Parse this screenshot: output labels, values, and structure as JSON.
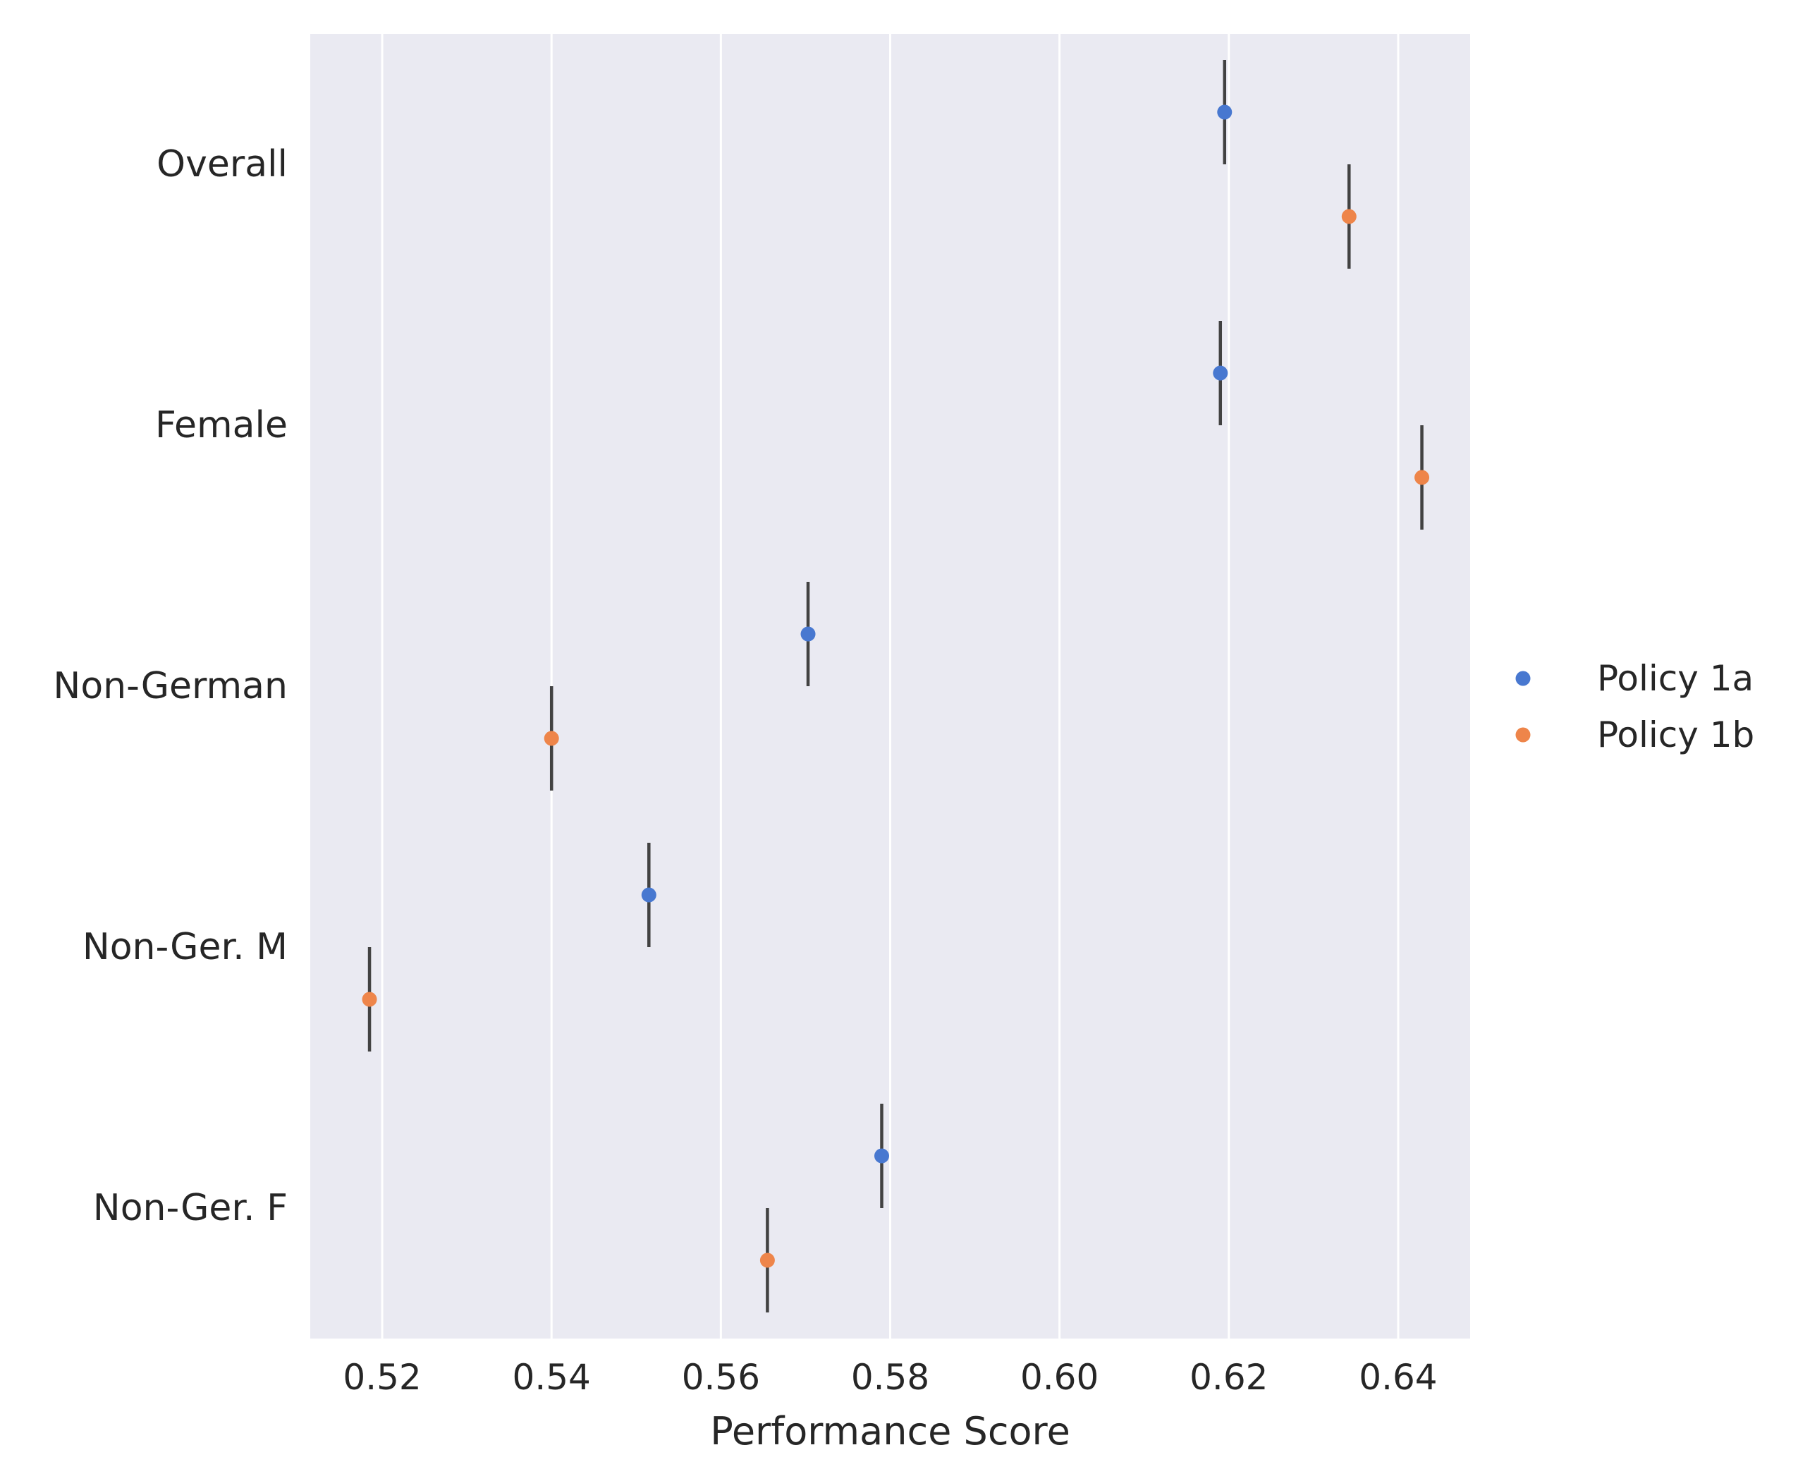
{
  "chart_data": {
    "type": "scatter",
    "title": "",
    "xlabel": "Performance Score",
    "ylabel": "",
    "xlim": [
      0.5115,
      0.6485
    ],
    "xticks": [
      0.52,
      0.54,
      0.56,
      0.58,
      0.6,
      0.62,
      0.64
    ],
    "xtick_labels": [
      "0.52",
      "0.54",
      "0.56",
      "0.58",
      "0.60",
      "0.62",
      "0.64"
    ],
    "categories": [
      "Overall",
      "Female",
      "Non-German",
      "Non-Ger. M",
      "Non-Ger. F"
    ],
    "grid": true,
    "legend_position": "right",
    "background": "#eaeaf2",
    "series": [
      {
        "name": "Policy 1a",
        "color": "#4878d0",
        "values": [
          0.6195,
          0.619,
          0.5703,
          0.5515,
          0.579
        ],
        "ci_low": [
          0.6193,
          0.6188,
          0.5701,
          0.5513,
          0.5788
        ],
        "ci_high": [
          0.6197,
          0.6192,
          0.5705,
          0.5517,
          0.5792
        ]
      },
      {
        "name": "Policy 1b",
        "color": "#ee854a",
        "values": [
          0.6342,
          0.6428,
          0.54,
          0.5185,
          0.5655
        ],
        "ci_low": [
          0.634,
          0.6426,
          0.5398,
          0.5183,
          0.5653
        ],
        "ci_high": [
          0.6344,
          0.643,
          0.5402,
          0.5187,
          0.5657
        ]
      }
    ],
    "errorbar_color": "#424242"
  }
}
